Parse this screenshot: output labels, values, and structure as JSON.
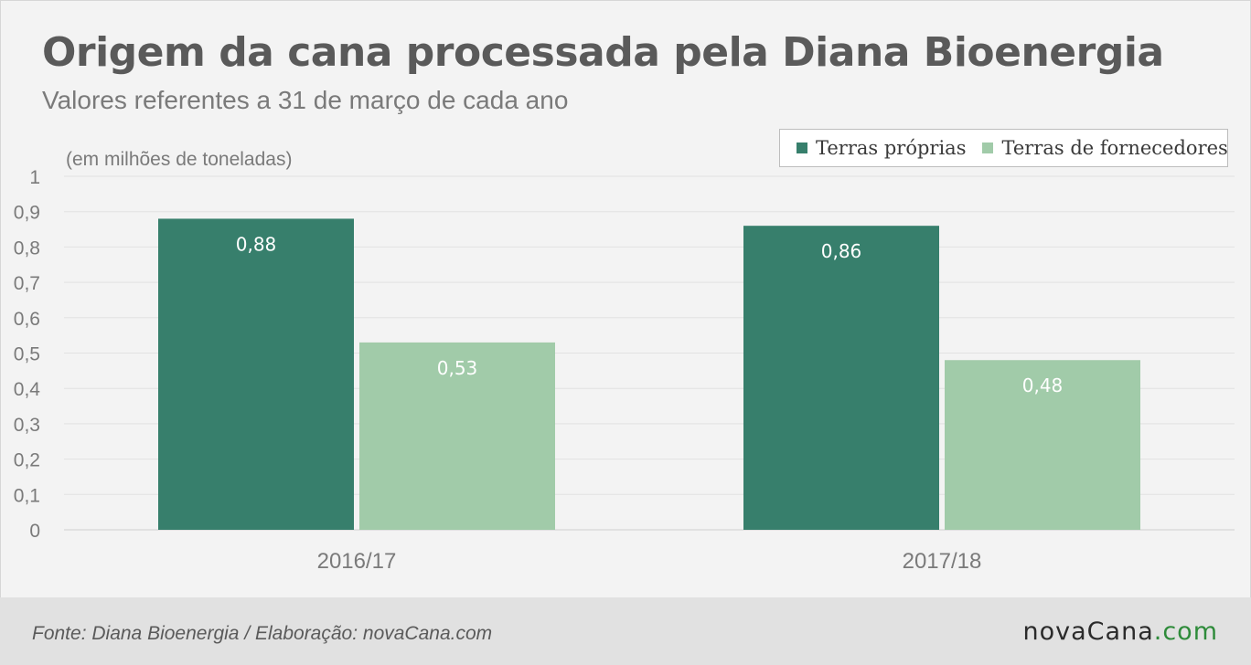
{
  "header": {
    "title": "Origem da cana processada pela Diana Bioenergia",
    "subtitle": "Valores referentes a 31 de março de cada ano",
    "unit_note": "(em milhões de toneladas)"
  },
  "footer": {
    "source": "Fonte: Diana Bioenergia / Elaboração: novaCana.com",
    "brand_main": "novaCana",
    "brand_suffix": ".com"
  },
  "colors": {
    "series_1": "#377f6c",
    "series_2": "#a1cba9",
    "grid": "#e2e2e2",
    "axis_text": "#7a7a7a",
    "label_text": "#ffffff"
  },
  "chart_data": {
    "type": "bar",
    "categories": [
      "2016/17",
      "2017/18"
    ],
    "series": [
      {
        "name": "Terras próprias",
        "values": [
          0.88,
          0.86
        ],
        "labels": [
          "0,88",
          "0,86"
        ]
      },
      {
        "name": "Terras de fornecedores",
        "values": [
          0.53,
          0.48
        ],
        "labels": [
          "0,53",
          "0,48"
        ]
      }
    ],
    "ylim": [
      0,
      1
    ],
    "yticks": [
      0,
      0.1,
      0.2,
      0.3,
      0.4,
      0.5,
      0.6,
      0.7,
      0.8,
      0.9,
      1
    ],
    "ytick_labels": [
      "0",
      "0,1",
      "0,2",
      "0,3",
      "0,4",
      "0,5",
      "0,6",
      "0,7",
      "0,8",
      "0,9",
      "1"
    ],
    "grid": true,
    "legend": "top-right",
    "ylabel": "(em milhões de toneladas)",
    "xlabel": ""
  }
}
